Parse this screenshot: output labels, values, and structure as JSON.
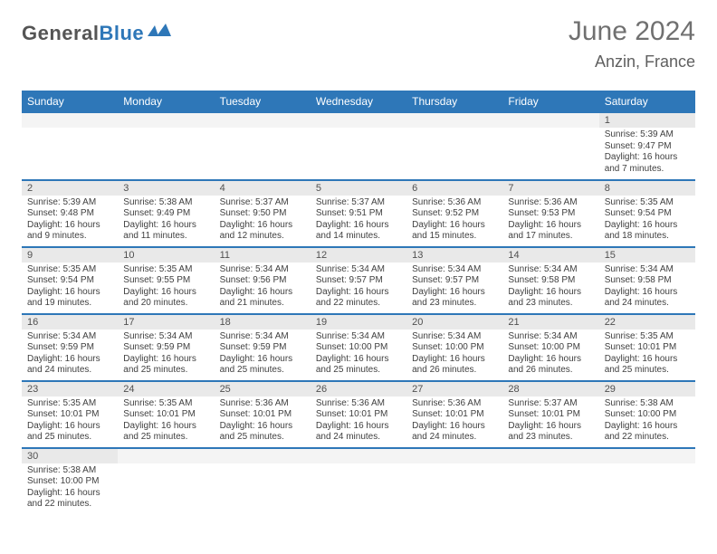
{
  "logo": {
    "word1": "General",
    "word2": "Blue"
  },
  "title": "June 2024",
  "location": "Anzin, France",
  "colors": {
    "brand_blue": "#2e77b8",
    "header_text": "#ffffff",
    "daynum_bg": "#e9e9e9",
    "border": "#2e77b8",
    "text": "#404040"
  },
  "days_of_week": [
    "Sunday",
    "Monday",
    "Tuesday",
    "Wednesday",
    "Thursday",
    "Friday",
    "Saturday"
  ],
  "weeks": [
    [
      {
        "n": "",
        "sr": "",
        "ss": "",
        "dl": ""
      },
      {
        "n": "",
        "sr": "",
        "ss": "",
        "dl": ""
      },
      {
        "n": "",
        "sr": "",
        "ss": "",
        "dl": ""
      },
      {
        "n": "",
        "sr": "",
        "ss": "",
        "dl": ""
      },
      {
        "n": "",
        "sr": "",
        "ss": "",
        "dl": ""
      },
      {
        "n": "",
        "sr": "",
        "ss": "",
        "dl": ""
      },
      {
        "n": "1",
        "sr": "Sunrise: 5:39 AM",
        "ss": "Sunset: 9:47 PM",
        "dl": "Daylight: 16 hours and 7 minutes."
      }
    ],
    [
      {
        "n": "2",
        "sr": "Sunrise: 5:39 AM",
        "ss": "Sunset: 9:48 PM",
        "dl": "Daylight: 16 hours and 9 minutes."
      },
      {
        "n": "3",
        "sr": "Sunrise: 5:38 AM",
        "ss": "Sunset: 9:49 PM",
        "dl": "Daylight: 16 hours and 11 minutes."
      },
      {
        "n": "4",
        "sr": "Sunrise: 5:37 AM",
        "ss": "Sunset: 9:50 PM",
        "dl": "Daylight: 16 hours and 12 minutes."
      },
      {
        "n": "5",
        "sr": "Sunrise: 5:37 AM",
        "ss": "Sunset: 9:51 PM",
        "dl": "Daylight: 16 hours and 14 minutes."
      },
      {
        "n": "6",
        "sr": "Sunrise: 5:36 AM",
        "ss": "Sunset: 9:52 PM",
        "dl": "Daylight: 16 hours and 15 minutes."
      },
      {
        "n": "7",
        "sr": "Sunrise: 5:36 AM",
        "ss": "Sunset: 9:53 PM",
        "dl": "Daylight: 16 hours and 17 minutes."
      },
      {
        "n": "8",
        "sr": "Sunrise: 5:35 AM",
        "ss": "Sunset: 9:54 PM",
        "dl": "Daylight: 16 hours and 18 minutes."
      }
    ],
    [
      {
        "n": "9",
        "sr": "Sunrise: 5:35 AM",
        "ss": "Sunset: 9:54 PM",
        "dl": "Daylight: 16 hours and 19 minutes."
      },
      {
        "n": "10",
        "sr": "Sunrise: 5:35 AM",
        "ss": "Sunset: 9:55 PM",
        "dl": "Daylight: 16 hours and 20 minutes."
      },
      {
        "n": "11",
        "sr": "Sunrise: 5:34 AM",
        "ss": "Sunset: 9:56 PM",
        "dl": "Daylight: 16 hours and 21 minutes."
      },
      {
        "n": "12",
        "sr": "Sunrise: 5:34 AM",
        "ss": "Sunset: 9:57 PM",
        "dl": "Daylight: 16 hours and 22 minutes."
      },
      {
        "n": "13",
        "sr": "Sunrise: 5:34 AM",
        "ss": "Sunset: 9:57 PM",
        "dl": "Daylight: 16 hours and 23 minutes."
      },
      {
        "n": "14",
        "sr": "Sunrise: 5:34 AM",
        "ss": "Sunset: 9:58 PM",
        "dl": "Daylight: 16 hours and 23 minutes."
      },
      {
        "n": "15",
        "sr": "Sunrise: 5:34 AM",
        "ss": "Sunset: 9:58 PM",
        "dl": "Daylight: 16 hours and 24 minutes."
      }
    ],
    [
      {
        "n": "16",
        "sr": "Sunrise: 5:34 AM",
        "ss": "Sunset: 9:59 PM",
        "dl": "Daylight: 16 hours and 24 minutes."
      },
      {
        "n": "17",
        "sr": "Sunrise: 5:34 AM",
        "ss": "Sunset: 9:59 PM",
        "dl": "Daylight: 16 hours and 25 minutes."
      },
      {
        "n": "18",
        "sr": "Sunrise: 5:34 AM",
        "ss": "Sunset: 9:59 PM",
        "dl": "Daylight: 16 hours and 25 minutes."
      },
      {
        "n": "19",
        "sr": "Sunrise: 5:34 AM",
        "ss": "Sunset: 10:00 PM",
        "dl": "Daylight: 16 hours and 25 minutes."
      },
      {
        "n": "20",
        "sr": "Sunrise: 5:34 AM",
        "ss": "Sunset: 10:00 PM",
        "dl": "Daylight: 16 hours and 26 minutes."
      },
      {
        "n": "21",
        "sr": "Sunrise: 5:34 AM",
        "ss": "Sunset: 10:00 PM",
        "dl": "Daylight: 16 hours and 26 minutes."
      },
      {
        "n": "22",
        "sr": "Sunrise: 5:35 AM",
        "ss": "Sunset: 10:01 PM",
        "dl": "Daylight: 16 hours and 25 minutes."
      }
    ],
    [
      {
        "n": "23",
        "sr": "Sunrise: 5:35 AM",
        "ss": "Sunset: 10:01 PM",
        "dl": "Daylight: 16 hours and 25 minutes."
      },
      {
        "n": "24",
        "sr": "Sunrise: 5:35 AM",
        "ss": "Sunset: 10:01 PM",
        "dl": "Daylight: 16 hours and 25 minutes."
      },
      {
        "n": "25",
        "sr": "Sunrise: 5:36 AM",
        "ss": "Sunset: 10:01 PM",
        "dl": "Daylight: 16 hours and 25 minutes."
      },
      {
        "n": "26",
        "sr": "Sunrise: 5:36 AM",
        "ss": "Sunset: 10:01 PM",
        "dl": "Daylight: 16 hours and 24 minutes."
      },
      {
        "n": "27",
        "sr": "Sunrise: 5:36 AM",
        "ss": "Sunset: 10:01 PM",
        "dl": "Daylight: 16 hours and 24 minutes."
      },
      {
        "n": "28",
        "sr": "Sunrise: 5:37 AM",
        "ss": "Sunset: 10:01 PM",
        "dl": "Daylight: 16 hours and 23 minutes."
      },
      {
        "n": "29",
        "sr": "Sunrise: 5:38 AM",
        "ss": "Sunset: 10:00 PM",
        "dl": "Daylight: 16 hours and 22 minutes."
      }
    ],
    [
      {
        "n": "30",
        "sr": "Sunrise: 5:38 AM",
        "ss": "Sunset: 10:00 PM",
        "dl": "Daylight: 16 hours and 22 minutes."
      },
      {
        "n": "",
        "sr": "",
        "ss": "",
        "dl": ""
      },
      {
        "n": "",
        "sr": "",
        "ss": "",
        "dl": ""
      },
      {
        "n": "",
        "sr": "",
        "ss": "",
        "dl": ""
      },
      {
        "n": "",
        "sr": "",
        "ss": "",
        "dl": ""
      },
      {
        "n": "",
        "sr": "",
        "ss": "",
        "dl": ""
      },
      {
        "n": "",
        "sr": "",
        "ss": "",
        "dl": ""
      }
    ]
  ]
}
